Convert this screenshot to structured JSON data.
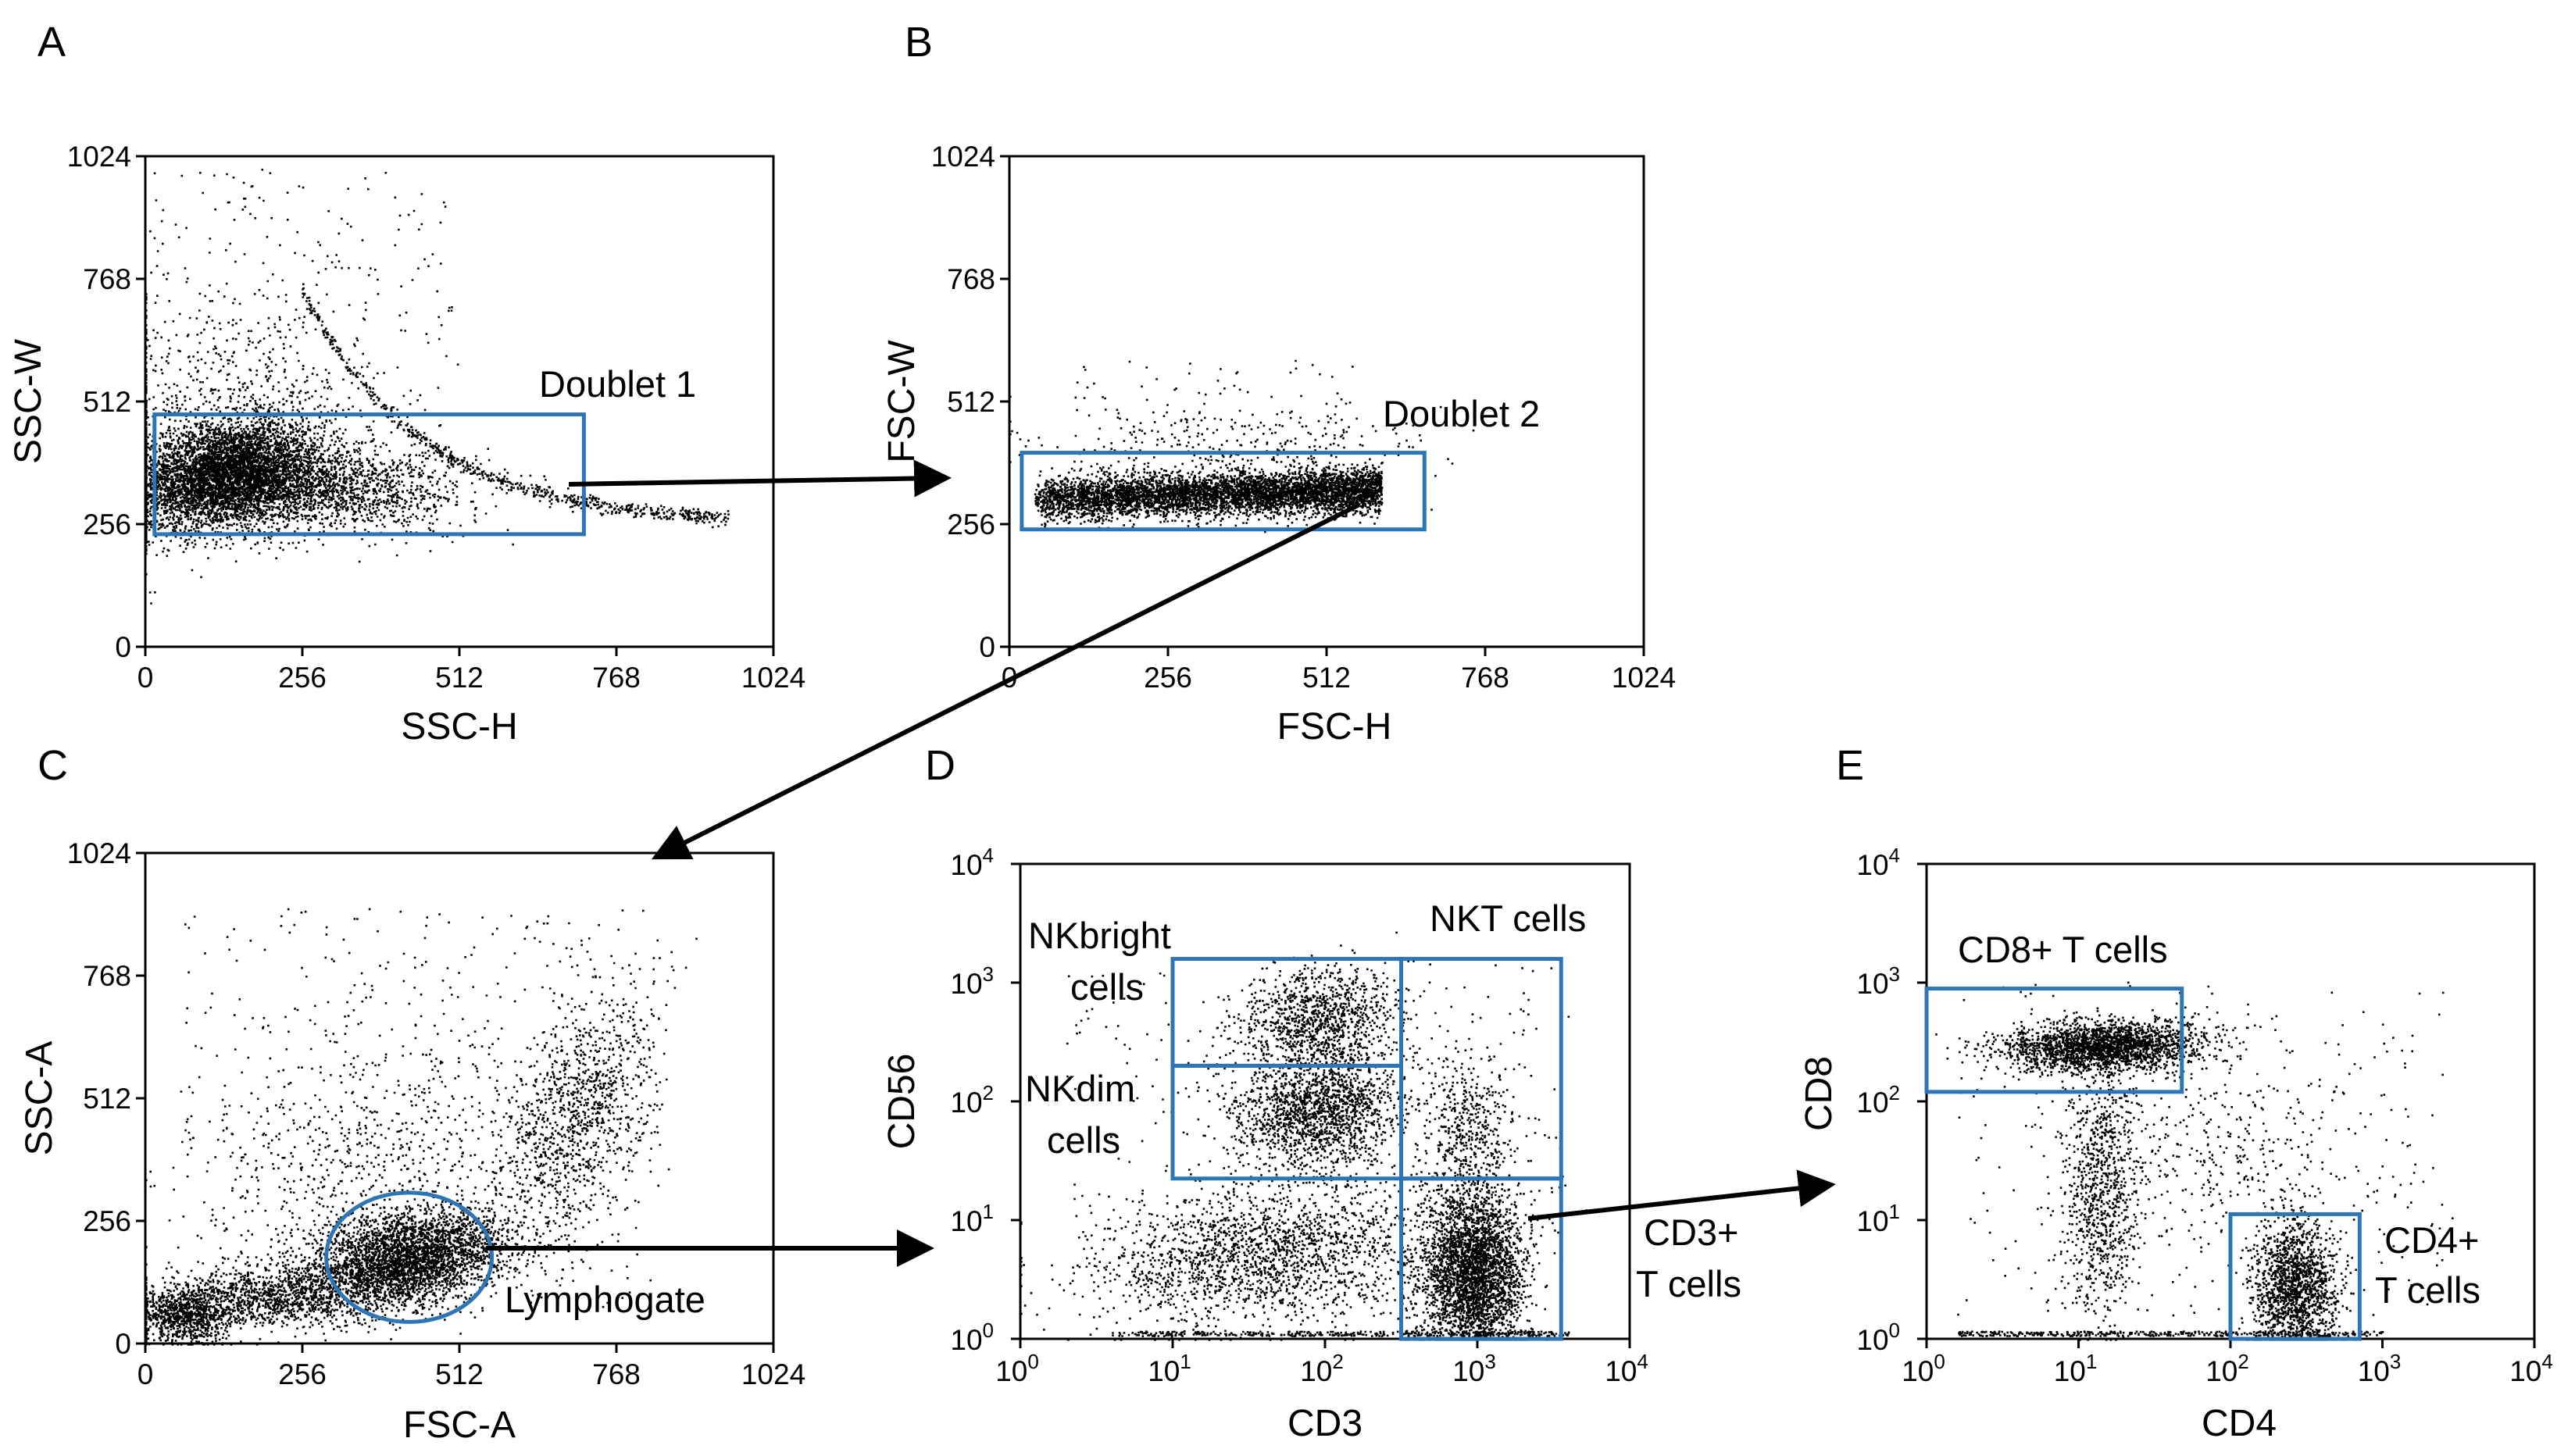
{
  "figure": {
    "panel_letters": [
      "A",
      "B",
      "C",
      "D",
      "E"
    ]
  },
  "colors": {
    "gate": "#2e75b6",
    "dots": "#000000",
    "axis": "#000000",
    "arrow": "#000000"
  },
  "chart_data": [
    {
      "id": "A",
      "type": "scatter",
      "xlabel": "SSC-H",
      "ylabel": "SSC-W",
      "xlim": [
        0,
        1024
      ],
      "ylim": [
        0,
        1024
      ],
      "xticks": [
        "0",
        "256",
        "512",
        "768",
        "1024"
      ],
      "yticks": [
        "0",
        "256",
        "512",
        "768",
        "1024"
      ],
      "gates": [
        {
          "name": "Doublet 1",
          "shape": "rect",
          "x": [
            15,
            715
          ],
          "y": [
            235,
            485
          ]
        }
      ]
    },
    {
      "id": "B",
      "type": "scatter",
      "xlabel": "FSC-H",
      "ylabel": "FSC-W",
      "xlim": [
        0,
        1024
      ],
      "ylim": [
        0,
        1024
      ],
      "xticks": [
        "0",
        "256",
        "512",
        "768",
        "1024"
      ],
      "yticks": [
        "0",
        "256",
        "512",
        "768",
        "1024"
      ],
      "gates": [
        {
          "name": "Doublet 2",
          "shape": "rect",
          "x": [
            20,
            670
          ],
          "y": [
            245,
            405
          ]
        }
      ]
    },
    {
      "id": "C",
      "type": "scatter",
      "xlabel": "FSC-A",
      "ylabel": "SSC-A",
      "xlim": [
        0,
        1024
      ],
      "ylim": [
        0,
        1024
      ],
      "xticks": [
        "0",
        "256",
        "512",
        "768",
        "1024"
      ],
      "yticks": [
        "0",
        "256",
        "512",
        "768",
        "1024"
      ],
      "gates": [
        {
          "name": "Lymphogate",
          "shape": "ellipse",
          "cx": 430,
          "cy": 180,
          "rx": 135,
          "ry": 135
        }
      ]
    },
    {
      "id": "D",
      "type": "scatter",
      "scale": "log",
      "xlabel": "CD3",
      "ylabel": "CD56",
      "xlim_log10": [
        0,
        4
      ],
      "ylim_log10": [
        0,
        4
      ],
      "tick_base": "10",
      "tick_exponents": [
        "0",
        "1",
        "2",
        "3",
        "4"
      ],
      "gates": [
        {
          "name": "NKbright cells",
          "shape": "rect",
          "x_log": [
            1.0,
            2.5
          ],
          "y_log": [
            2.3,
            3.2
          ]
        },
        {
          "name": "NKdim cells",
          "shape": "rect",
          "x_log": [
            1.0,
            2.5
          ],
          "y_log": [
            1.35,
            2.3
          ]
        },
        {
          "name": "NKT cells",
          "shape": "rect",
          "x_log": [
            2.5,
            3.55
          ],
          "y_log": [
            1.35,
            3.2
          ]
        },
        {
          "name": "CD3+ T cells",
          "shape": "rect",
          "x_log": [
            2.5,
            3.55
          ],
          "y_log": [
            0,
            1.35
          ]
        }
      ]
    },
    {
      "id": "E",
      "type": "scatter",
      "scale": "log",
      "xlabel": "CD4",
      "ylabel": "CD8",
      "xlim_log10": [
        0,
        4
      ],
      "ylim_log10": [
        0,
        4
      ],
      "tick_base": "10",
      "tick_exponents": [
        "0",
        "1",
        "2",
        "3",
        "4"
      ],
      "gates": [
        {
          "name": "CD8+ T cells",
          "shape": "rect",
          "x_log": [
            0,
            1.68
          ],
          "y_log": [
            2.08,
            2.95
          ]
        },
        {
          "name": "CD4+ T cells",
          "shape": "rect",
          "x_log": [
            2.0,
            2.85
          ],
          "y_log": [
            0,
            1.05
          ]
        }
      ]
    }
  ],
  "gate_text": {
    "doublet1": "Doublet 1",
    "doublet2": "Doublet 2",
    "lymphogate": "Lymphogate",
    "nkbright_1": "NKbright",
    "nkbright_2": "cells",
    "nkdim_1": "NKdim",
    "nkdim_2": "cells",
    "nkt": "NKT cells",
    "cd3t_1": "CD3+",
    "cd3t_2": "T cells",
    "cd8t": "CD8+ T cells",
    "cd4t_1": "CD4+",
    "cd4t_2": "T cells"
  }
}
